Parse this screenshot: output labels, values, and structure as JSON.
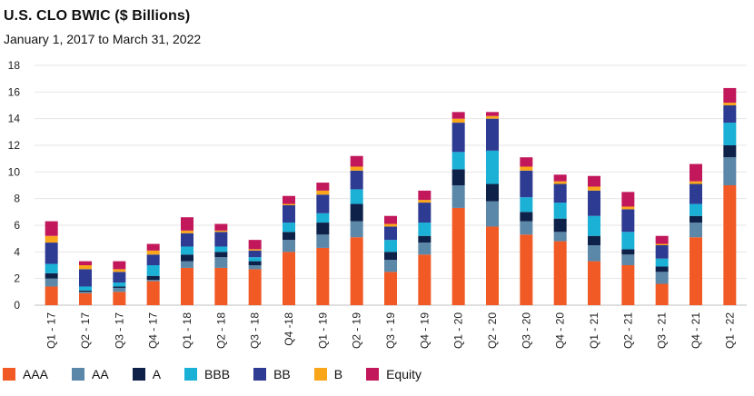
{
  "title": "U.S. CLO BWIC ($ Billions)",
  "subtitle": "January 1, 2017 to March 31, 2022",
  "chart_data": {
    "type": "bar",
    "stacked": true,
    "categories": [
      "Q1 - 17",
      "Q2 - 17",
      "Q3 - 17",
      "Q4 - 17",
      "Q1 - 18",
      "Q2 - 18",
      "Q3 - 18",
      "Q4 -18",
      "Q1 - 19",
      "Q2 - 19",
      "Q3 - 19",
      "Q4 - 19",
      "Q1 - 20",
      "Q2 - 20",
      "Q3 - 20",
      "Q4 - 20",
      "Q1 - 21",
      "Q2 - 21",
      "Q3 - 21",
      "Q4 - 21",
      "Q1 - 22"
    ],
    "ylim": [
      0,
      18
    ],
    "yticks": [
      "0",
      "2",
      "4",
      "6",
      "8",
      "10",
      "12",
      "14",
      "16",
      "18"
    ],
    "grid": true,
    "legend_position": "bottom",
    "series": [
      {
        "name": "AAA",
        "color": "#F15A24",
        "values": [
          1.4,
          0.9,
          1.0,
          1.8,
          2.8,
          2.8,
          2.7,
          4.0,
          4.3,
          5.1,
          2.5,
          3.8,
          7.3,
          5.9,
          5.3,
          4.8,
          3.3,
          3.0,
          1.6,
          5.1,
          9.0
        ]
      },
      {
        "name": "AA",
        "color": "#5B87A8",
        "values": [
          0.6,
          0.1,
          0.3,
          0.1,
          0.5,
          0.8,
          0.3,
          0.9,
          1.0,
          1.2,
          0.9,
          0.9,
          1.7,
          1.9,
          1.0,
          0.7,
          1.2,
          0.8,
          0.9,
          1.1,
          2.1
        ]
      },
      {
        "name": "A",
        "color": "#0E2148",
        "values": [
          0.4,
          0.1,
          0.1,
          0.3,
          0.5,
          0.4,
          0.3,
          0.6,
          0.9,
          1.3,
          0.6,
          0.5,
          1.2,
          1.3,
          0.7,
          1.0,
          0.7,
          0.4,
          0.4,
          0.5,
          0.9
        ]
      },
      {
        "name": "BBB",
        "color": "#1BB0D6",
        "values": [
          0.7,
          0.3,
          0.3,
          0.8,
          0.6,
          0.4,
          0.3,
          0.7,
          0.7,
          1.1,
          0.9,
          1.0,
          1.3,
          2.5,
          1.1,
          1.2,
          1.5,
          1.3,
          0.6,
          0.9,
          1.7
        ]
      },
      {
        "name": "BB",
        "color": "#2E3B92",
        "values": [
          1.6,
          1.3,
          0.8,
          0.8,
          1.0,
          1.1,
          0.5,
          1.3,
          1.4,
          1.4,
          1.0,
          1.5,
          2.2,
          2.4,
          2.0,
          1.4,
          1.9,
          1.7,
          1.0,
          1.5,
          1.3
        ]
      },
      {
        "name": "B",
        "color": "#F9A61A",
        "values": [
          0.5,
          0.3,
          0.2,
          0.3,
          0.2,
          0.1,
          0.1,
          0.1,
          0.3,
          0.3,
          0.2,
          0.2,
          0.3,
          0.2,
          0.3,
          0.2,
          0.3,
          0.2,
          0.1,
          0.2,
          0.2
        ]
      },
      {
        "name": "Equity",
        "color": "#C2185B",
        "values": [
          1.1,
          0.3,
          0.6,
          0.5,
          1.0,
          0.5,
          0.7,
          0.6,
          0.6,
          0.8,
          0.6,
          0.7,
          0.5,
          0.3,
          0.7,
          0.5,
          0.8,
          1.1,
          0.6,
          1.3,
          1.1
        ]
      }
    ]
  }
}
